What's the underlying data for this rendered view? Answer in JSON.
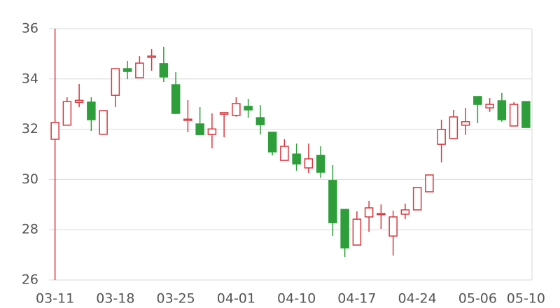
{
  "chart_data": {
    "type": "candlestick",
    "categories": [
      "03-11",
      null,
      null,
      null,
      null,
      "03-18",
      null,
      null,
      null,
      null,
      "03-25",
      null,
      null,
      null,
      null,
      "04-01",
      null,
      null,
      null,
      null,
      "04-10",
      null,
      null,
      null,
      null,
      "04-17",
      null,
      null,
      null,
      null,
      "04-24",
      null,
      null,
      null,
      null,
      "05-06",
      null,
      null,
      null,
      "05-10"
    ],
    "open": [
      31.6,
      32.16,
      33.07,
      33.08,
      31.8,
      33.35,
      34.41,
      34.05,
      34.86,
      34.61,
      33.77,
      32.35,
      32.21,
      31.79,
      32.6,
      32.55,
      32.91,
      32.46,
      31.88,
      30.76,
      31.01,
      30.46,
      30.96,
      29.96,
      28.81,
      27.39,
      28.51,
      28.6,
      27.75,
      28.62,
      28.79,
      29.51,
      31.4,
      31.63,
      32.16,
      33.3,
      32.85,
      33.13,
      32.13,
      33.1
    ],
    "high": [
      36,
      33.27,
      33.8,
      33.27,
      32.74,
      34.41,
      34.72,
      34.91,
      35.19,
      35.28,
      34.27,
      33.16,
      32.88,
      32.63,
      32.66,
      33.27,
      33.21,
      32.96,
      31.88,
      31.6,
      31.43,
      31.43,
      31.32,
      30.57,
      28.81,
      28.73,
      29.15,
      29.01,
      28.76,
      29.04,
      29.68,
      30.18,
      32.38,
      32.77,
      32.85,
      33.3,
      33.24,
      33.44,
      33.08,
      33.1
    ],
    "low": [
      26,
      32.16,
      32.88,
      31.93,
      31.8,
      32.88,
      33.99,
      34.05,
      34.33,
      33.88,
      32.6,
      31.88,
      31.79,
      31.24,
      31.68,
      32.5,
      32.46,
      31.79,
      30.96,
      30.76,
      30.35,
      30.26,
      30.07,
      27.75,
      26.92,
      27.39,
      27.92,
      28.03,
      26.97,
      28.42,
      28.79,
      29.51,
      30.68,
      31.63,
      31.77,
      32.24,
      32.69,
      32.3,
      32.13,
      32.07
    ],
    "close": [
      32.27,
      33.1,
      33.15,
      32.38,
      32.74,
      34.41,
      34.3,
      34.63,
      34.91,
      34.08,
      32.63,
      32.4,
      31.79,
      32.01,
      32.66,
      33.02,
      32.77,
      32.18,
      31.1,
      31.32,
      30.62,
      30.82,
      30.29,
      28.28,
      27.28,
      28.42,
      28.87,
      28.65,
      28.51,
      28.79,
      29.68,
      30.18,
      31.99,
      32.49,
      32.3,
      32.99,
      32.99,
      32.38,
      32.99,
      32.07
    ],
    "up_color": "#d9363e",
    "down_color": "#2e9e3a",
    "ylim": [
      26,
      36
    ],
    "yticks": [
      26,
      28,
      30,
      32,
      34,
      36
    ],
    "grid": true
  }
}
